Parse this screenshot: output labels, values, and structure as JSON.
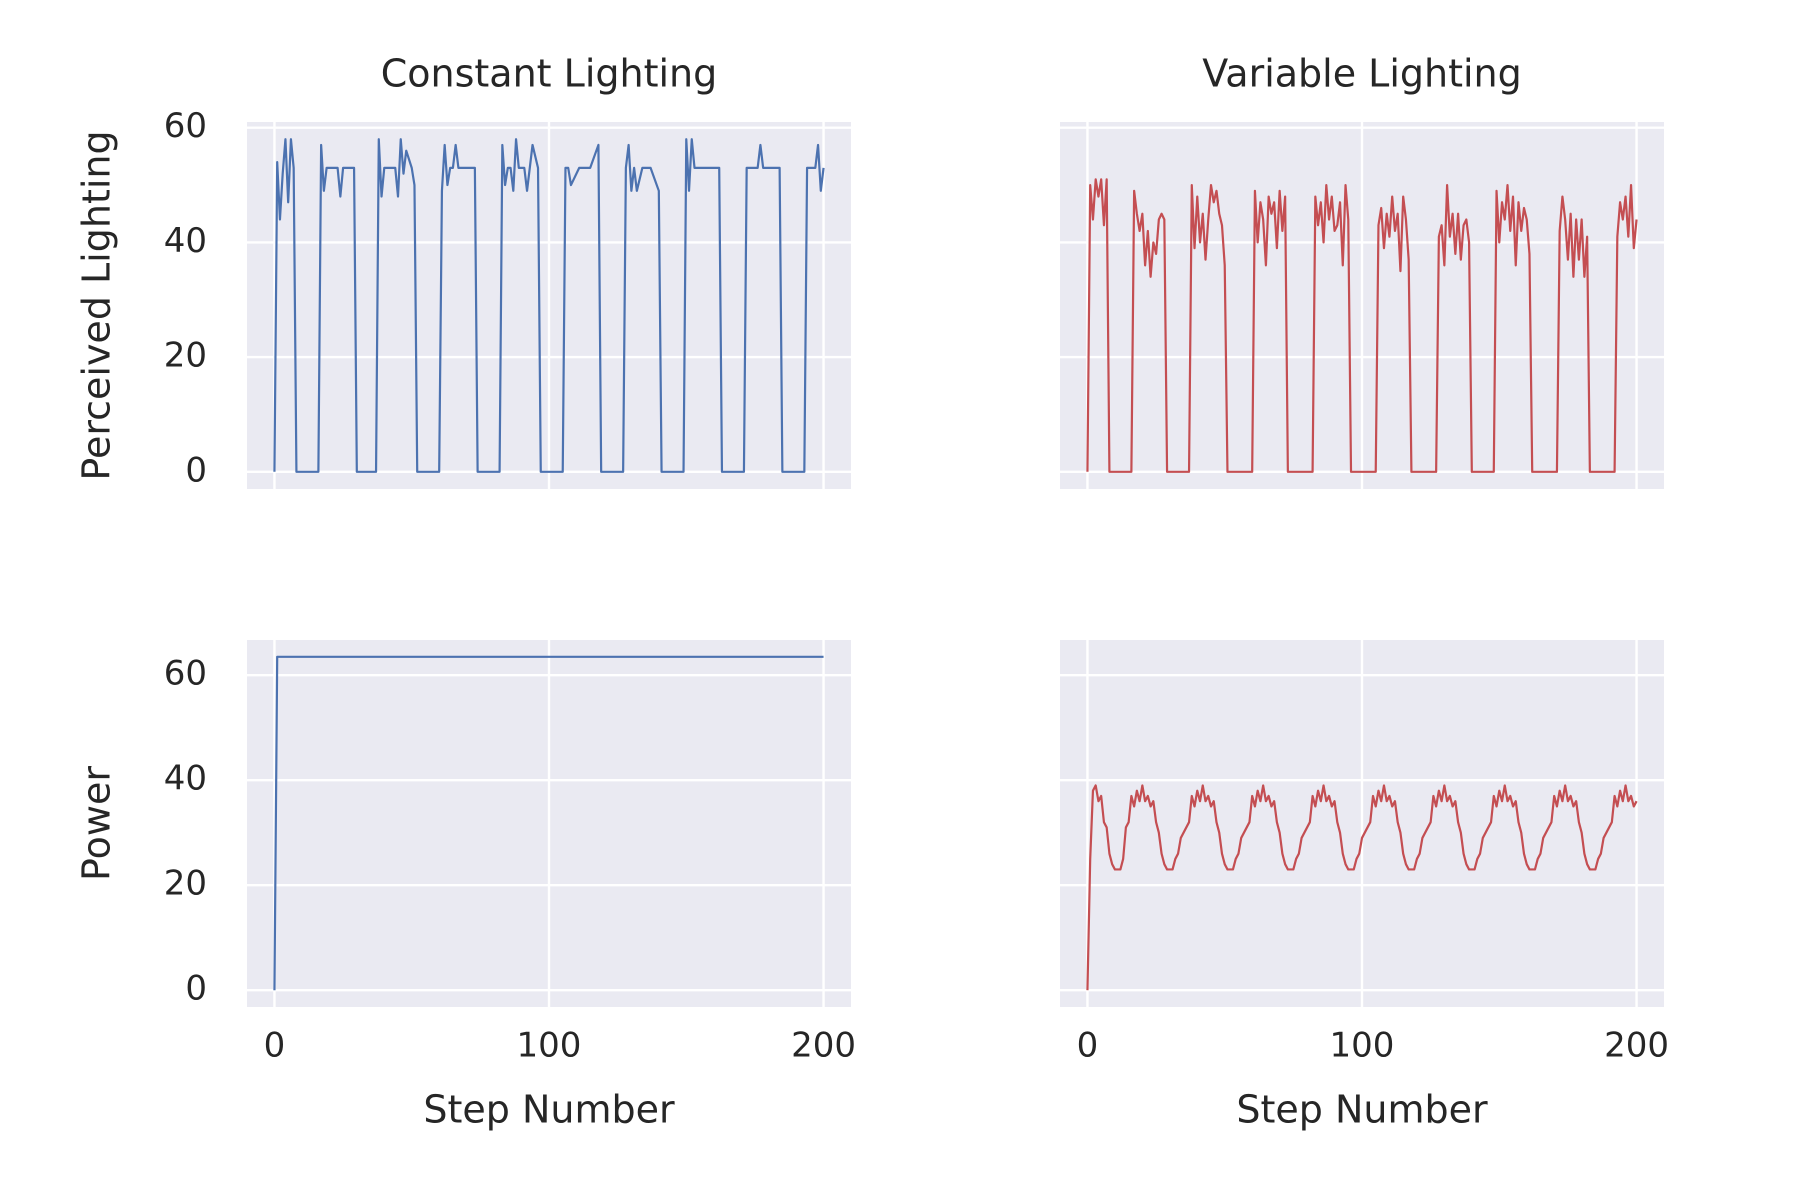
{
  "chart_data": [
    {
      "type": "line",
      "title": "Constant Lighting",
      "ylabel": "Perceived Lighting",
      "color": "#4c72b0",
      "grid": true,
      "xlim": [
        -10,
        210
      ],
      "xticks": [
        0,
        100,
        200
      ],
      "ylim": [
        -3,
        61
      ],
      "yticks": [
        0,
        20,
        40,
        60
      ],
      "x": [
        0,
        1,
        2,
        3,
        4,
        5,
        6,
        7,
        8,
        16,
        17,
        18,
        19,
        23,
        24,
        25,
        27,
        29,
        30,
        37,
        38,
        39,
        40,
        41,
        43,
        44,
        45,
        46,
        47,
        48,
        50,
        51,
        52,
        60,
        61,
        62,
        63,
        64,
        65,
        66,
        67,
        68,
        70,
        73,
        74,
        82,
        83,
        84,
        85,
        86,
        87,
        88,
        89,
        90,
        91,
        92,
        94,
        96,
        97,
        105,
        106,
        107,
        108,
        111,
        112,
        113,
        114,
        115,
        118,
        119,
        127,
        128,
        129,
        130,
        131,
        132,
        134,
        135,
        136,
        137,
        140,
        141,
        149,
        150,
        151,
        152,
        153,
        154,
        155,
        156,
        162,
        163,
        171,
        172,
        173,
        174,
        175,
        176,
        177,
        178,
        184,
        185,
        193,
        194,
        195,
        196,
        197,
        198,
        199,
        200
      ],
      "values": [
        0,
        54,
        44,
        52,
        58,
        47,
        58,
        53,
        0,
        0,
        57,
        49,
        53,
        53,
        48,
        53,
        53,
        53,
        0,
        0,
        58,
        48,
        53,
        53,
        53,
        53,
        48,
        58,
        52,
        56,
        53,
        50,
        0,
        0,
        49,
        57,
        50,
        53,
        53,
        57,
        53,
        53,
        53,
        53,
        0,
        0,
        57,
        50,
        53,
        53,
        49,
        58,
        53,
        53,
        53,
        49,
        57,
        53,
        0,
        0,
        53,
        53,
        50,
        53,
        53,
        53,
        53,
        53,
        57,
        0,
        0,
        53,
        57,
        49,
        53,
        49,
        53,
        53,
        53,
        53,
        49,
        0,
        0,
        58,
        49,
        58,
        53,
        53,
        53,
        53,
        53,
        0,
        0,
        53,
        53,
        53,
        53,
        53,
        57,
        53,
        53,
        0,
        0,
        53,
        53,
        53,
        53,
        57,
        49,
        53
      ]
    },
    {
      "type": "line",
      "title": "Variable Lighting",
      "color": "#c44e52",
      "grid": true,
      "xlim": [
        -10,
        210
      ],
      "xticks": [
        0,
        100,
        200
      ],
      "ylim": [
        -3,
        61
      ],
      "yticks": [
        0,
        20,
        40,
        60
      ],
      "x": [
        0,
        1,
        2,
        3,
        4,
        5,
        6,
        7,
        8,
        16,
        17,
        18,
        19,
        20,
        21,
        22,
        23,
        24,
        25,
        26,
        27,
        28,
        29,
        37,
        38,
        39,
        40,
        41,
        42,
        43,
        44,
        45,
        46,
        47,
        48,
        49,
        50,
        51,
        60,
        61,
        62,
        63,
        64,
        65,
        66,
        67,
        68,
        69,
        70,
        71,
        72,
        73,
        82,
        83,
        84,
        85,
        86,
        87,
        88,
        89,
        90,
        91,
        92,
        93,
        94,
        95,
        96,
        105,
        106,
        107,
        108,
        109,
        110,
        111,
        112,
        113,
        114,
        115,
        116,
        117,
        118,
        127,
        128,
        129,
        130,
        131,
        132,
        133,
        134,
        135,
        136,
        137,
        138,
        139,
        140,
        148,
        149,
        150,
        151,
        152,
        153,
        154,
        155,
        156,
        157,
        158,
        159,
        160,
        161,
        162,
        171,
        172,
        173,
        174,
        175,
        176,
        177,
        178,
        179,
        180,
        181,
        182,
        183,
        192,
        193,
        194,
        195,
        196,
        197,
        198,
        199,
        200
      ],
      "values": [
        0,
        50,
        44,
        51,
        48,
        51,
        43,
        51,
        0,
        0,
        49,
        45,
        42,
        45,
        36,
        42,
        34,
        40,
        38,
        44,
        45,
        44,
        0,
        0,
        50,
        39,
        48,
        40,
        45,
        37,
        44,
        50,
        47,
        49,
        45,
        43,
        36,
        0,
        0,
        49,
        40,
        47,
        44,
        36,
        48,
        45,
        47,
        39,
        49,
        42,
        48,
        0,
        0,
        48,
        43,
        47,
        40,
        50,
        44,
        48,
        42,
        43,
        47,
        36,
        50,
        44,
        0,
        0,
        43,
        46,
        39,
        45,
        41,
        48,
        42,
        45,
        35,
        48,
        44,
        37,
        0,
        0,
        41,
        43,
        36,
        50,
        41,
        45,
        38,
        45,
        37,
        43,
        44,
        40,
        0,
        0,
        49,
        40,
        47,
        44,
        50,
        42,
        48,
        36,
        47,
        42,
        46,
        44,
        38,
        0,
        0,
        42,
        48,
        44,
        37,
        45,
        34,
        44,
        37,
        44,
        34,
        41,
        0,
        0,
        41,
        47,
        44,
        48,
        41,
        50,
        39,
        44
      ]
    },
    {
      "type": "line",
      "xlabel": "Step Number",
      "ylabel": "Power",
      "color": "#4c72b0",
      "grid": true,
      "xlim": [
        -10,
        210
      ],
      "xticks": [
        0,
        100,
        200
      ],
      "ylim": [
        -3.2,
        66.7
      ],
      "yticks": [
        0,
        20,
        40,
        60
      ],
      "x": [
        0,
        1,
        200
      ],
      "values": [
        0,
        63.5,
        63.5
      ]
    },
    {
      "type": "line",
      "xlabel": "Step Number",
      "color": "#c44e52",
      "grid": true,
      "xlim": [
        -10,
        210
      ],
      "xticks": [
        0,
        100,
        200
      ],
      "ylim": [
        -3.2,
        66.7
      ],
      "yticks": [
        0,
        20,
        40,
        60
      ],
      "x": [
        0,
        1,
        2,
        3,
        4,
        5,
        6,
        7,
        8,
        9,
        10,
        11,
        12,
        13,
        14,
        15,
        16,
        17,
        18,
        19,
        20,
        21,
        22,
        23,
        24,
        25,
        26,
        27,
        28,
        29,
        30,
        31,
        32,
        33,
        34,
        35,
        36,
        37,
        38,
        39,
        40,
        41,
        42,
        43,
        44,
        45,
        46,
        47,
        48,
        49,
        50,
        51,
        52,
        53,
        54,
        55,
        56,
        57,
        58,
        59,
        60,
        61,
        62,
        63,
        64,
        65,
        66,
        67,
        68,
        69,
        70,
        71,
        72,
        73,
        74,
        75,
        76,
        77,
        78,
        79,
        80,
        81,
        82,
        83,
        84,
        85,
        86,
        87,
        88,
        89,
        90,
        91,
        92,
        93,
        94,
        95,
        96,
        97,
        98,
        99,
        100,
        101,
        102,
        103,
        104,
        105,
        106,
        107,
        108,
        109,
        110,
        111,
        112,
        113,
        114,
        115,
        116,
        117,
        118,
        119,
        120,
        121,
        122,
        123,
        124,
        125,
        126,
        127,
        128,
        129,
        130,
        131,
        132,
        133,
        134,
        135,
        136,
        137,
        138,
        139,
        140,
        141,
        142,
        143,
        144,
        145,
        146,
        147,
        148,
        149,
        150,
        151,
        152,
        153,
        154,
        155,
        156,
        157,
        158,
        159,
        160,
        161,
        162,
        163,
        164,
        165,
        166,
        167,
        168,
        169,
        170,
        171,
        172,
        173,
        174,
        175,
        176,
        177,
        178,
        179,
        180,
        181,
        182,
        183,
        184,
        185,
        186,
        187,
        188,
        189,
        190,
        191,
        192,
        193,
        194,
        195,
        196,
        197,
        198,
        199,
        200
      ],
      "values": [
        0,
        25,
        38,
        39,
        36,
        37,
        32,
        31,
        26,
        24,
        23,
        23,
        23,
        25,
        31,
        32,
        37,
        35,
        38,
        36,
        39,
        36,
        37,
        35,
        36,
        32,
        30,
        26,
        24,
        23,
        23,
        23,
        25,
        26,
        29,
        30,
        31,
        32,
        37,
        35,
        38,
        36,
        39,
        36,
        37,
        35,
        36,
        32,
        30,
        26,
        24,
        23,
        23,
        23,
        25,
        26,
        29,
        30,
        31,
        32,
        37,
        35,
        38,
        36,
        39,
        36,
        37,
        35,
        36,
        32,
        30,
        26,
        24,
        23,
        23,
        23,
        25,
        26,
        29,
        30,
        31,
        32,
        37,
        35,
        38,
        36,
        39,
        36,
        37,
        35,
        36,
        32,
        30,
        26,
        24,
        23,
        23,
        23,
        25,
        26,
        29,
        30,
        31,
        32,
        37,
        35,
        38,
        36,
        39,
        36,
        37,
        35,
        36,
        32,
        30,
        26,
        24,
        23,
        23,
        23,
        25,
        26,
        29,
        30,
        31,
        32,
        37,
        35,
        38,
        36,
        39,
        36,
        37,
        35,
        36,
        32,
        30,
        26,
        24,
        23,
        23,
        23,
        25,
        26,
        29,
        30,
        31,
        32,
        37,
        35,
        38,
        36,
        39,
        36,
        37,
        35,
        36,
        32,
        30,
        26,
        24,
        23,
        23,
        23,
        25,
        26,
        29,
        30,
        31,
        32,
        37,
        35,
        38,
        36,
        39,
        36,
        37,
        35,
        36,
        32,
        30,
        26,
        24,
        23,
        23,
        23,
        25,
        26,
        29,
        30,
        31,
        32,
        37,
        35,
        38,
        36,
        39,
        36,
        37,
        35,
        36
      ]
    }
  ]
}
